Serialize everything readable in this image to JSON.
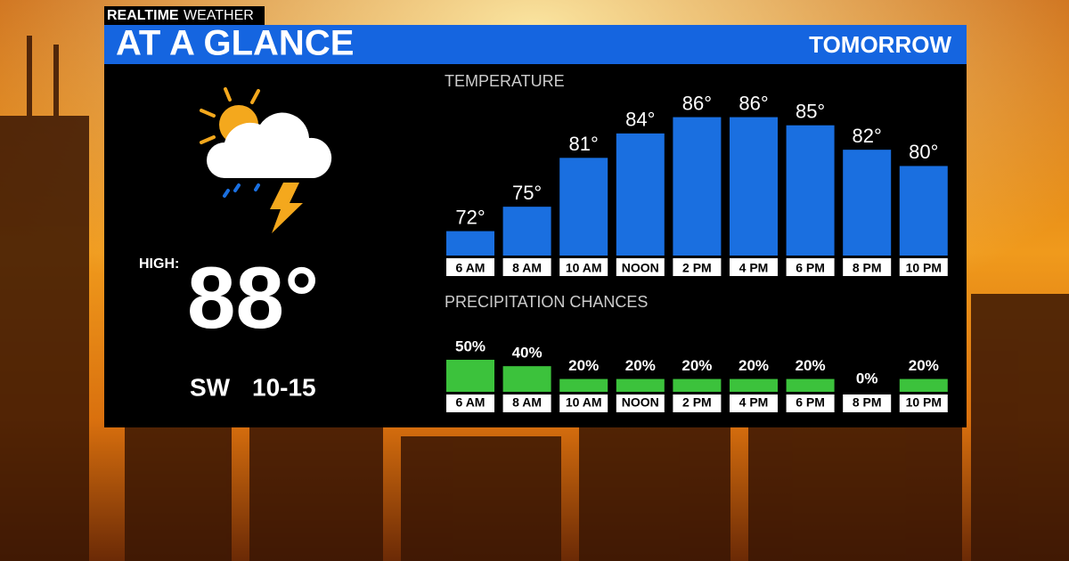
{
  "badge": {
    "brand": "REALTIME",
    "product": "WEATHER"
  },
  "header": {
    "title": "AT A GLANCE",
    "period": "TOMORROW"
  },
  "summary": {
    "high_label": "HIGH:",
    "high": "88°",
    "wind_direction": "SW",
    "wind_speed": "10-15"
  },
  "chart_data": [
    {
      "type": "bar",
      "title": "TEMPERATURE",
      "categories": [
        "6 AM",
        "8 AM",
        "10 AM",
        "NOON",
        "2 PM",
        "4 PM",
        "6 PM",
        "8 PM",
        "10 PM"
      ],
      "values": [
        72,
        75,
        81,
        84,
        86,
        86,
        85,
        82,
        80
      ],
      "value_labels": [
        "72°",
        "75°",
        "81°",
        "84°",
        "86°",
        "86°",
        "85°",
        "82°",
        "80°"
      ],
      "color": "#1a6fe0",
      "ylim": [
        69,
        90
      ]
    },
    {
      "type": "bar",
      "title": "PRECIPITATION CHANCES",
      "categories": [
        "6 AM",
        "8 AM",
        "10 AM",
        "NOON",
        "2 PM",
        "4 PM",
        "6 PM",
        "8 PM",
        "10 PM"
      ],
      "values": [
        50,
        40,
        20,
        20,
        20,
        20,
        20,
        0,
        20
      ],
      "value_labels": [
        "50%",
        "40%",
        "20%",
        "20%",
        "20%",
        "20%",
        "20%",
        "0%",
        "20%"
      ],
      "color": "#3cc23c",
      "ylim": [
        0,
        100
      ]
    }
  ]
}
